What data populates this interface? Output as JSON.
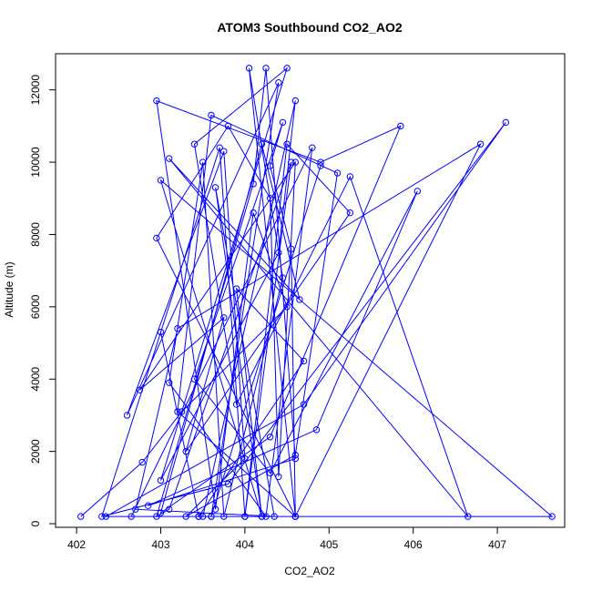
{
  "chart_data": {
    "type": "line",
    "title": "ATOM3 Southbound CO2_AO2",
    "xlabel": "CO2_AO2",
    "ylabel": "Altitude (m)",
    "xlim": [
      401.75,
      407.8
    ],
    "ylim": [
      -100,
      13000
    ],
    "x_ticks": [
      402,
      403,
      404,
      405,
      406,
      407
    ],
    "y_ticks": [
      0,
      2000,
      4000,
      6000,
      8000,
      10000,
      12000
    ],
    "color": "#0000ff",
    "grid": false,
    "markers": "open-circle",
    "series": [
      {
        "x": [
          402.05,
          402.78,
          403.25,
          404.5,
          404.1,
          403.65,
          402.95,
          404.9,
          405.85,
          404.3,
          403.0,
          404.2,
          404.65,
          403.1,
          406.65,
          405.25,
          403.9,
          403.4,
          404.5,
          403.0,
          404.4,
          404.6,
          403.5,
          402.35,
          404.7,
          407.1,
          403.8,
          402.3,
          403.7,
          404.0,
          404.55,
          403.1,
          402.95,
          404.1,
          404.25,
          404.6,
          402.85,
          404.85,
          406.05,
          404.3,
          403.4,
          404.45,
          404.3,
          404.55,
          404.6,
          403.2,
          403.6,
          405.1,
          404.6,
          403.3,
          404.0,
          403.75,
          402.6,
          404.4,
          403.6,
          404.9,
          403.6,
          407.65,
          403.0,
          404.2,
          404.6,
          402.95,
          403.8,
          404.3,
          404.4,
          404.6,
          402.75,
          403.75,
          403.3,
          405.25,
          404.5,
          404.0,
          403.45,
          402.65,
          404.8,
          404.25,
          403.1,
          403.5,
          403.75,
          404.45,
          404.05,
          404.6,
          406.8,
          403.2,
          402.7,
          404.35,
          403.65,
          404.2,
          403.9,
          404.7,
          403.45,
          403.0
        ],
        "y": [
          200,
          1700,
          3100,
          6000,
          8600,
          400,
          11700,
          10000,
          11000,
          2400,
          300,
          10500,
          6200,
          10100,
          200,
          9600,
          3300,
          10500,
          12600,
          1200,
          7500,
          11700,
          200,
          200,
          3300,
          11100,
          1100,
          200,
          10400,
          200,
          10000,
          400,
          200,
          9400,
          12600,
          1800,
          500,
          2600,
          9200,
          1400,
          4000,
          11100,
          9900,
          7600,
          200,
          3100,
          11300,
          9700,
          1900,
          200,
          1800,
          10300,
          3000,
          12200,
          200,
          9900,
          200,
          200,
          9500,
          200,
          200,
          7900,
          11000,
          9000,
          1300,
          10000,
          3700,
          5700,
          2000,
          8600,
          10500,
          200,
          200,
          200,
          10400,
          200,
          3900,
          10000,
          200,
          6800,
          12600,
          200,
          10500,
          5400,
          400,
          200,
          9300,
          200,
          6500,
          4500,
          200,
          5300
        ]
      }
    ]
  }
}
